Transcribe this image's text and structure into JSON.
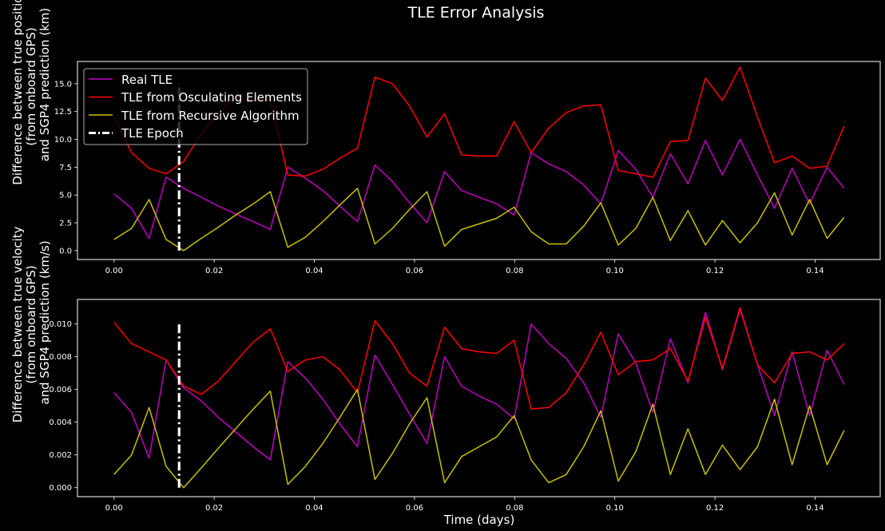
{
  "figure": {
    "title": "TLE Error Analysis",
    "background": "#000000",
    "text_color": "#ffffff"
  },
  "chart_data": [
    {
      "type": "line",
      "panel": "position",
      "ylabel_lines": [
        "Difference between true position",
        "(from onboard GPS)",
        "and SGP4 prediction (km)"
      ],
      "xlabel": "",
      "xlim": [
        -0.0073,
        0.153
      ],
      "ylim": [
        -0.8,
        17.0
      ],
      "xticks": [
        0.0,
        0.02,
        0.04,
        0.06,
        0.08,
        0.1,
        0.12,
        0.14
      ],
      "xtick_labels": [
        "0.00",
        "0.02",
        "0.04",
        "0.06",
        "0.08",
        "0.10",
        "0.12",
        "0.14"
      ],
      "yticks": [
        0.0,
        2.5,
        5.0,
        7.5,
        10.0,
        12.5,
        15.0
      ],
      "ytick_labels": [
        "0.0",
        "2.5",
        "5.0",
        "7.5",
        "10.0",
        "12.5",
        "15.0"
      ],
      "grid": false,
      "legend": {
        "placement": "upper-left",
        "entries": [
          {
            "label": "Real TLE",
            "color": "#c000c0",
            "style": "solid"
          },
          {
            "label": "TLE from Osculating Elements",
            "color": "#ff0000",
            "style": "solid"
          },
          {
            "label": "TLE from Recursive Algorithm",
            "color": "#c8c000",
            "style": "solid"
          },
          {
            "label": "TLE Epoch",
            "color": "#ffffff",
            "style": "dashdot"
          }
        ]
      },
      "epoch": {
        "x": 0.013,
        "y": [
          0.0,
          15.0
        ]
      },
      "series": [
        {
          "name": "Real TLE",
          "color": "#c000c0",
          "x": [
            0.0,
            0.0035,
            0.007,
            0.0104,
            0.0139,
            0.0174,
            0.0208,
            0.0243,
            0.0278,
            0.0312,
            0.0347,
            0.0382,
            0.0417,
            0.0451,
            0.0486,
            0.0521,
            0.0556,
            0.059,
            0.0625,
            0.066,
            0.0694,
            0.0729,
            0.0764,
            0.0799,
            0.0833,
            0.0868,
            0.0903,
            0.0938,
            0.0972,
            0.1007,
            0.1042,
            0.1076,
            0.1111,
            0.1146,
            0.1181,
            0.1215,
            0.125,
            0.1285,
            0.1319,
            0.1354,
            0.1389,
            0.1424,
            0.1458
          ],
          "values": [
            5.1,
            3.8,
            1.1,
            6.6,
            5.6,
            4.8,
            4.0,
            3.3,
            2.6,
            1.9,
            7.5,
            6.5,
            5.4,
            4.0,
            2.6,
            7.7,
            6.2,
            4.3,
            2.5,
            7.1,
            5.4,
            4.8,
            4.2,
            3.2,
            8.8,
            7.8,
            7.1,
            5.9,
            4.2,
            9.0,
            7.3,
            4.8,
            8.7,
            6.0,
            9.9,
            6.8,
            10.0,
            6.8,
            3.8,
            7.4,
            4.2,
            7.5,
            5.6
          ]
        },
        {
          "name": "TLE from Osculating Elements",
          "color": "#ff0000",
          "x": [
            0.0,
            0.0035,
            0.007,
            0.0104,
            0.0139,
            0.0174,
            0.0208,
            0.0243,
            0.0278,
            0.0312,
            0.0347,
            0.0382,
            0.0417,
            0.0451,
            0.0486,
            0.0521,
            0.0556,
            0.059,
            0.0625,
            0.066,
            0.0694,
            0.0729,
            0.0764,
            0.0799,
            0.0833,
            0.0868,
            0.0903,
            0.0938,
            0.0972,
            0.1007,
            0.1042,
            0.1076,
            0.1111,
            0.1146,
            0.1181,
            0.1215,
            0.125,
            0.1285,
            0.1319,
            0.1354,
            0.1389,
            0.1424,
            0.1458
          ],
          "values": [
            12.0,
            8.8,
            7.4,
            6.9,
            8.0,
            10.5,
            12.3,
            13.9,
            13.5,
            13.6,
            6.8,
            6.7,
            7.3,
            8.3,
            9.2,
            15.6,
            15.0,
            13.0,
            10.2,
            12.3,
            8.6,
            8.5,
            8.5,
            11.6,
            8.8,
            11.0,
            12.4,
            13.0,
            13.1,
            7.2,
            6.9,
            6.6,
            9.8,
            9.9,
            15.5,
            13.5,
            16.5,
            12.0,
            7.9,
            8.5,
            7.4,
            7.6,
            11.2
          ]
        },
        {
          "name": "TLE from Recursive Algorithm",
          "color": "#c8c000",
          "x": [
            0.0,
            0.0035,
            0.007,
            0.0104,
            0.0139,
            0.0174,
            0.0208,
            0.0243,
            0.0278,
            0.0312,
            0.0347,
            0.0382,
            0.0417,
            0.0451,
            0.0486,
            0.0521,
            0.0556,
            0.059,
            0.0625,
            0.066,
            0.0694,
            0.0729,
            0.0764,
            0.0799,
            0.0833,
            0.0868,
            0.0903,
            0.0938,
            0.0972,
            0.1007,
            0.1042,
            0.1076,
            0.1111,
            0.1146,
            0.1181,
            0.1215,
            0.125,
            0.1285,
            0.1319,
            0.1354,
            0.1389,
            0.1424,
            0.1458
          ],
          "values": [
            1.0,
            2.0,
            4.6,
            1.0,
            0.0,
            1.1,
            2.1,
            3.2,
            4.2,
            5.3,
            0.3,
            1.2,
            2.6,
            4.1,
            5.6,
            0.6,
            2.0,
            3.7,
            5.3,
            0.4,
            1.9,
            2.4,
            2.9,
            3.9,
            1.7,
            0.6,
            0.6,
            2.2,
            4.3,
            0.5,
            2.0,
            4.8,
            0.9,
            3.6,
            0.5,
            2.7,
            0.7,
            2.5,
            5.2,
            1.4,
            4.6,
            1.1,
            3.0
          ]
        }
      ]
    },
    {
      "type": "line",
      "panel": "velocity",
      "ylabel_lines": [
        "Difference between true velocity",
        "(from onboard GPS)",
        "and SGP4 prediction (km/s)"
      ],
      "xlabel": "Time (days)",
      "xlim": [
        -0.0073,
        0.153
      ],
      "ylim": [
        -0.00055,
        0.0115
      ],
      "xticks": [
        0.0,
        0.02,
        0.04,
        0.06,
        0.08,
        0.1,
        0.12,
        0.14
      ],
      "xtick_labels": [
        "0.00",
        "0.02",
        "0.04",
        "0.06",
        "0.08",
        "0.10",
        "0.12",
        "0.14"
      ],
      "yticks": [
        0.0,
        0.002,
        0.004,
        0.006,
        0.008,
        0.01
      ],
      "ytick_labels": [
        "0.000",
        "0.002",
        "0.004",
        "0.006",
        "0.008",
        "0.010"
      ],
      "grid": false,
      "epoch": {
        "x": 0.013,
        "y": [
          0.0,
          0.01
        ]
      },
      "series": [
        {
          "name": "Real TLE",
          "color": "#c000c0",
          "x": [
            0.0,
            0.0035,
            0.007,
            0.0104,
            0.0139,
            0.0174,
            0.0208,
            0.0243,
            0.0278,
            0.0312,
            0.0347,
            0.0382,
            0.0417,
            0.0451,
            0.0486,
            0.0521,
            0.0556,
            0.059,
            0.0625,
            0.066,
            0.0694,
            0.0729,
            0.0764,
            0.0799,
            0.0833,
            0.0868,
            0.0903,
            0.0938,
            0.0972,
            0.1007,
            0.1042,
            0.1076,
            0.1111,
            0.1146,
            0.1181,
            0.1215,
            0.125,
            0.1285,
            0.1319,
            0.1354,
            0.1389,
            0.1424,
            0.1458
          ],
          "values": [
            0.0058,
            0.0046,
            0.0018,
            0.0078,
            0.0061,
            0.0053,
            0.0043,
            0.0034,
            0.0025,
            0.0017,
            0.0077,
            0.0067,
            0.0054,
            0.0039,
            0.0025,
            0.0081,
            0.0063,
            0.0045,
            0.0027,
            0.008,
            0.0062,
            0.0056,
            0.0051,
            0.0042,
            0.01,
            0.0088,
            0.0079,
            0.0064,
            0.0043,
            0.0094,
            0.0076,
            0.0046,
            0.0091,
            0.0064,
            0.0107,
            0.0072,
            0.0109,
            0.0075,
            0.0044,
            0.0083,
            0.0044,
            0.0084,
            0.0063
          ]
        },
        {
          "name": "TLE from Osculating Elements",
          "color": "#ff0000",
          "x": [
            0.0,
            0.0035,
            0.007,
            0.0104,
            0.0139,
            0.0174,
            0.0208,
            0.0243,
            0.0278,
            0.0312,
            0.0347,
            0.0382,
            0.0417,
            0.0451,
            0.0486,
            0.0521,
            0.0556,
            0.059,
            0.0625,
            0.066,
            0.0694,
            0.0729,
            0.0764,
            0.0799,
            0.0833,
            0.0868,
            0.0903,
            0.0938,
            0.0972,
            0.1007,
            0.1042,
            0.1076,
            0.1111,
            0.1146,
            0.1181,
            0.1215,
            0.125,
            0.1285,
            0.1319,
            0.1354,
            0.1389,
            0.1424,
            0.1458
          ],
          "values": [
            0.0101,
            0.0088,
            0.0083,
            0.0078,
            0.0062,
            0.0057,
            0.0065,
            0.0077,
            0.0089,
            0.0097,
            0.0071,
            0.0078,
            0.008,
            0.0072,
            0.0058,
            0.0102,
            0.0088,
            0.007,
            0.0062,
            0.0098,
            0.0085,
            0.0083,
            0.0082,
            0.009,
            0.0048,
            0.0049,
            0.0058,
            0.0075,
            0.0095,
            0.0069,
            0.0077,
            0.0078,
            0.0085,
            0.0065,
            0.0104,
            0.0073,
            0.011,
            0.0075,
            0.0064,
            0.0082,
            0.0083,
            0.0078,
            0.0088
          ]
        },
        {
          "name": "TLE from Recursive Algorithm",
          "color": "#c8c000",
          "x": [
            0.0,
            0.0035,
            0.007,
            0.0104,
            0.0139,
            0.0174,
            0.0208,
            0.0243,
            0.0278,
            0.0312,
            0.0347,
            0.0382,
            0.0417,
            0.0451,
            0.0486,
            0.0521,
            0.0556,
            0.059,
            0.0625,
            0.066,
            0.0694,
            0.0729,
            0.0764,
            0.0799,
            0.0833,
            0.0868,
            0.0903,
            0.0938,
            0.0972,
            0.1007,
            0.1042,
            0.1076,
            0.1111,
            0.1146,
            0.1181,
            0.1215,
            0.125,
            0.1285,
            0.1319,
            0.1354,
            0.1389,
            0.1424,
            0.1458
          ],
          "values": [
            0.0008,
            0.002,
            0.0049,
            0.0013,
            0.0,
            0.0012,
            0.0024,
            0.0036,
            0.0048,
            0.0059,
            0.0002,
            0.0013,
            0.0027,
            0.0043,
            0.006,
            0.0005,
            0.0021,
            0.0039,
            0.0055,
            0.0003,
            0.0019,
            0.0025,
            0.0031,
            0.0044,
            0.0017,
            0.0003,
            0.0008,
            0.0025,
            0.0047,
            0.0004,
            0.0022,
            0.0051,
            0.0008,
            0.0036,
            0.0008,
            0.0026,
            0.0011,
            0.0025,
            0.0054,
            0.0014,
            0.005,
            0.0014,
            0.0035
          ]
        }
      ]
    }
  ]
}
